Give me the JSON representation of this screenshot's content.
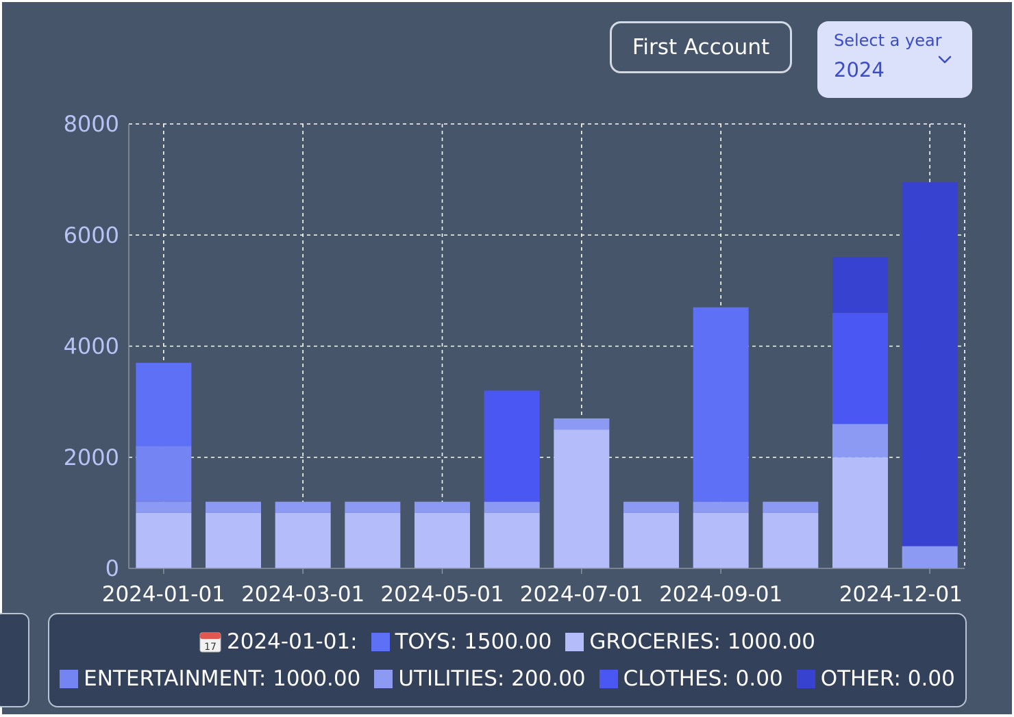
{
  "header": {
    "account_button": "First Account",
    "year_select": {
      "label": "Select a year",
      "value": "2024"
    }
  },
  "chart_data": {
    "type": "bar",
    "stacked": true,
    "categories": [
      "2024-01-01",
      "2024-02-01",
      "2024-03-01",
      "2024-04-01",
      "2024-05-01",
      "2024-06-01",
      "2024-07-01",
      "2024-08-01",
      "2024-09-01",
      "2024-10-01",
      "2024-11-01",
      "2024-12-01"
    ],
    "x_tick_labels": [
      "2024-01-01",
      "2024-03-01",
      "2024-05-01",
      "2024-07-01",
      "2024-09-01",
      "2024-12-01"
    ],
    "ylim": [
      0,
      8000
    ],
    "y_ticks": [
      0,
      2000,
      4000,
      6000,
      8000
    ],
    "grid": true,
    "series": [
      {
        "name": "GROCERIES",
        "color": "#b4bdf9",
        "values": [
          1000,
          1000,
          1000,
          1000,
          1000,
          1000,
          2500,
          1000,
          1000,
          1000,
          2000,
          0
        ]
      },
      {
        "name": "UTILITIES",
        "color": "#8d9af3",
        "values": [
          200,
          200,
          200,
          200,
          200,
          200,
          200,
          200,
          200,
          200,
          600,
          400
        ]
      },
      {
        "name": "ENTERTAINMENT",
        "color": "#7484f2",
        "values": [
          1000,
          0,
          0,
          0,
          0,
          0,
          0,
          0,
          0,
          0,
          0,
          0
        ]
      },
      {
        "name": "TOYS",
        "color": "#5e70f5",
        "values": [
          1500,
          0,
          0,
          0,
          0,
          0,
          0,
          0,
          3500,
          0,
          0,
          0
        ]
      },
      {
        "name": "CLOTHES",
        "color": "#4a57f3",
        "values": [
          0,
          0,
          0,
          0,
          0,
          2000,
          0,
          0,
          0,
          0,
          2000,
          0
        ]
      },
      {
        "name": "OTHER",
        "color": "#3742d0",
        "values": [
          0,
          0,
          0,
          0,
          0,
          0,
          0,
          0,
          0,
          0,
          1000,
          6550
        ]
      }
    ]
  },
  "tooltip": {
    "icon": "calendar-icon",
    "date_label": "2024-01-01:",
    "items": [
      {
        "text": "TOYS: 1500.00",
        "color": "#5e70f5"
      },
      {
        "text": "GROCERIES: 1000.00",
        "color": "#b4bdf9"
      },
      {
        "text": "ENTERTAINMENT: 1000.00",
        "color": "#7484f2"
      },
      {
        "text": "UTILITIES: 200.00",
        "color": "#8d9af3"
      },
      {
        "text": "CLOTHES: 0.00",
        "color": "#4a57f3"
      },
      {
        "text": "OTHER: 0.00",
        "color": "#3742d0"
      }
    ]
  }
}
